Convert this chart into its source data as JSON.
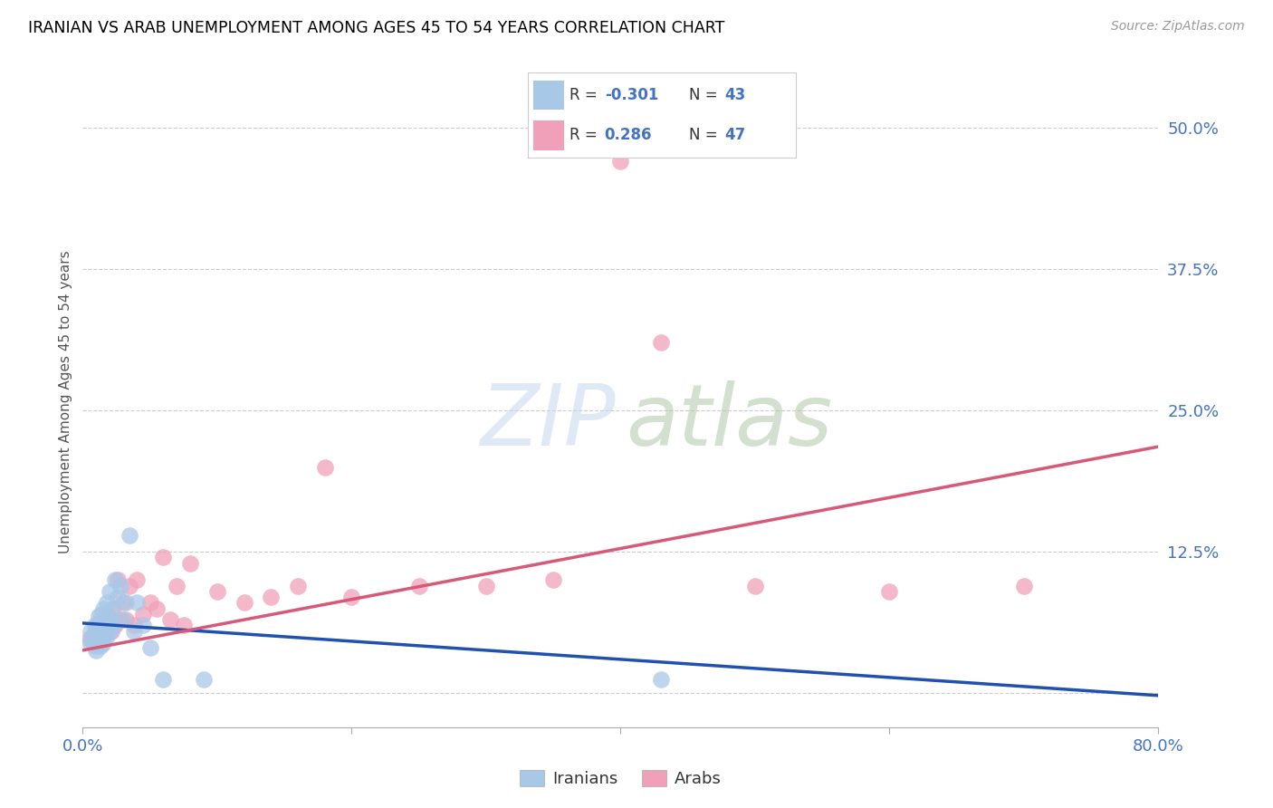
{
  "title": "IRANIAN VS ARAB UNEMPLOYMENT AMONG AGES 45 TO 54 YEARS CORRELATION CHART",
  "source": "Source: ZipAtlas.com",
  "ylabel": "Unemployment Among Ages 45 to 54 years",
  "xlim": [
    0.0,
    0.8
  ],
  "ylim": [
    -0.03,
    0.545
  ],
  "xtick_positions": [
    0.0,
    0.2,
    0.4,
    0.6,
    0.8
  ],
  "xtick_labels": [
    "0.0%",
    "",
    "",
    "",
    "80.0%"
  ],
  "ytick_positions": [
    0.0,
    0.125,
    0.25,
    0.375,
    0.5
  ],
  "ytick_labels": [
    "",
    "12.5%",
    "25.0%",
    "37.5%",
    "50.0%"
  ],
  "iranian_color": "#a8c8e8",
  "arab_color": "#f0a0b8",
  "iranian_line_color": "#2050b0",
  "arab_line_color": "#d85878",
  "tick_color": "#4472c4",
  "iranian_line_x": [
    0.0,
    0.8
  ],
  "iranian_line_y": [
    0.062,
    -0.002
  ],
  "arab_line_x": [
    0.0,
    0.8
  ],
  "arab_line_y": [
    0.038,
    0.218
  ],
  "iranian_x": [
    0.005,
    0.006,
    0.007,
    0.008,
    0.009,
    0.009,
    0.01,
    0.01,
    0.011,
    0.011,
    0.012,
    0.012,
    0.013,
    0.013,
    0.014,
    0.014,
    0.015,
    0.015,
    0.015,
    0.016,
    0.017,
    0.017,
    0.018,
    0.018,
    0.019,
    0.02,
    0.02,
    0.021,
    0.022,
    0.023,
    0.024,
    0.026,
    0.028,
    0.03,
    0.032,
    0.035,
    0.038,
    0.04,
    0.045,
    0.05,
    0.06,
    0.09,
    0.43
  ],
  "iranian_y": [
    0.045,
    0.055,
    0.048,
    0.05,
    0.042,
    0.06,
    0.038,
    0.055,
    0.044,
    0.062,
    0.05,
    0.068,
    0.042,
    0.06,
    0.048,
    0.07,
    0.044,
    0.058,
    0.075,
    0.05,
    0.048,
    0.065,
    0.055,
    0.08,
    0.06,
    0.055,
    0.09,
    0.065,
    0.075,
    0.06,
    0.1,
    0.085,
    0.095,
    0.065,
    0.08,
    0.14,
    0.055,
    0.08,
    0.06,
    0.04,
    0.012,
    0.012,
    0.012
  ],
  "arab_x": [
    0.005,
    0.007,
    0.008,
    0.009,
    0.01,
    0.011,
    0.012,
    0.013,
    0.014,
    0.015,
    0.016,
    0.017,
    0.018,
    0.019,
    0.02,
    0.021,
    0.022,
    0.024,
    0.026,
    0.028,
    0.03,
    0.032,
    0.035,
    0.038,
    0.04,
    0.045,
    0.05,
    0.055,
    0.06,
    0.065,
    0.07,
    0.075,
    0.08,
    0.1,
    0.12,
    0.14,
    0.16,
    0.18,
    0.2,
    0.25,
    0.3,
    0.35,
    0.4,
    0.43,
    0.5,
    0.6,
    0.7
  ],
  "arab_y": [
    0.048,
    0.05,
    0.045,
    0.055,
    0.05,
    0.058,
    0.045,
    0.055,
    0.06,
    0.055,
    0.065,
    0.052,
    0.07,
    0.06,
    0.065,
    0.055,
    0.075,
    0.06,
    0.1,
    0.065,
    0.08,
    0.065,
    0.095,
    0.06,
    0.1,
    0.07,
    0.08,
    0.075,
    0.12,
    0.065,
    0.095,
    0.06,
    0.115,
    0.09,
    0.08,
    0.085,
    0.095,
    0.2,
    0.085,
    0.095,
    0.095,
    0.1,
    0.47,
    0.31,
    0.095,
    0.09,
    0.095
  ]
}
